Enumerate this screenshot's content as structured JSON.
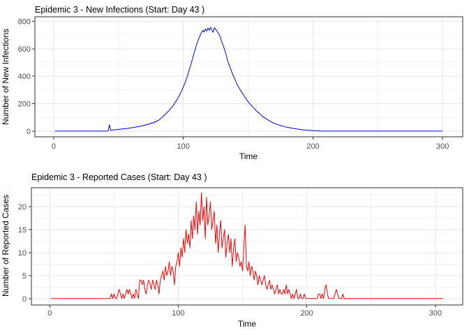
{
  "page": {
    "background": "#ffffff"
  },
  "chart_data": [
    {
      "type": "line",
      "title": "Epidemic 3 - New Infections (Start: Day 43 )",
      "xlabel": "Time",
      "ylabel": "Number of New Infections",
      "line_color": "#0000FF",
      "grid": true,
      "legend": "none",
      "x_ticks": [
        0,
        100,
        200,
        300
      ],
      "x_minor_ticks": [
        50,
        150,
        250
      ],
      "y_ticks": [
        0,
        200,
        400,
        600,
        800
      ],
      "y_minor_ticks": [
        100,
        300,
        500,
        700
      ],
      "xlim": [
        -14.5,
        315.5
      ],
      "ylim": [
        -41,
        833
      ],
      "x_start_day": 1,
      "values": [
        0,
        0,
        0,
        0,
        0,
        0,
        0,
        0,
        0,
        0,
        0,
        0,
        0,
        0,
        0,
        0,
        0,
        0,
        0,
        0,
        0,
        0,
        0,
        0,
        0,
        0,
        0,
        0,
        0,
        0,
        0,
        0,
        0,
        0,
        0,
        0,
        0,
        0,
        0,
        0,
        0,
        3,
        46,
        6,
        8,
        10,
        9,
        12,
        11,
        14,
        13,
        16,
        15,
        18,
        17,
        20,
        19,
        23,
        22,
        26,
        25,
        29,
        28,
        33,
        31,
        36,
        35,
        41,
        39,
        45,
        44,
        50,
        48,
        56,
        54,
        62,
        60,
        69,
        67,
        77,
        80,
        88,
        95,
        103,
        112,
        121,
        131,
        142,
        150,
        163,
        172,
        186,
        198,
        213,
        228,
        245,
        262,
        281,
        300,
        322,
        345,
        370,
        398,
        428,
        460,
        492,
        525,
        558,
        590,
        622,
        650,
        676,
        698,
        718,
        733,
        722,
        744,
        728,
        750,
        734,
        757,
        736,
        720,
        753,
        741,
        727,
        713,
        697,
        668,
        641,
        616,
        589,
        558,
        517,
        492,
        466,
        441,
        417,
        396,
        372,
        352,
        331,
        316,
        299,
        286,
        269,
        255,
        241,
        227,
        214,
        203,
        192,
        182,
        172,
        163,
        150,
        143,
        135,
        127,
        116,
        108,
        101,
        96,
        89,
        83,
        78,
        72,
        67,
        62,
        58,
        54,
        51,
        47,
        44,
        41,
        38,
        36,
        33,
        31,
        29,
        27,
        25,
        23,
        21,
        20,
        18,
        17,
        15,
        14,
        13,
        11,
        10,
        9,
        8,
        9,
        7,
        6,
        5,
        4,
        5,
        3,
        2,
        3,
        2,
        2,
        1,
        1,
        0,
        0,
        0,
        0,
        0,
        0,
        0,
        0,
        0,
        0,
        0,
        0,
        0,
        0,
        0,
        0,
        0,
        0,
        0,
        0,
        0,
        0,
        0,
        0,
        0,
        0,
        0,
        0,
        0,
        0,
        0,
        0,
        0,
        0,
        0,
        0,
        0,
        0,
        0,
        0,
        0,
        0,
        0,
        0,
        0,
        0,
        0,
        0,
        0,
        0,
        0,
        0,
        0,
        0,
        0,
        0,
        0,
        0,
        0,
        0,
        0,
        0,
        0,
        0,
        0,
        0,
        0,
        0,
        0,
        0,
        0,
        0,
        0,
        0,
        0,
        0,
        0,
        0,
        0,
        0,
        0,
        0,
        0,
        0,
        0,
        0,
        0,
        0,
        0,
        0,
        0,
        0,
        0
      ]
    },
    {
      "type": "line",
      "title": "Epidemic 3 - Reported Cases (Start: Day 43 )",
      "xlabel": "Time",
      "ylabel": "Number of Reported Cases",
      "line_color": "#FF0000",
      "grid": true,
      "legend": "none",
      "x_ticks": [
        0,
        100,
        200,
        300
      ],
      "x_minor_ticks": [
        50,
        150,
        250
      ],
      "y_ticks": [
        0,
        5,
        10,
        15,
        20
      ],
      "y_minor_ticks": [
        2.5,
        7.5,
        12.5,
        17.5,
        22.5
      ],
      "xlim": [
        -14.3,
        321.3
      ],
      "ylim": [
        -1.4,
        24.1
      ],
      "x_start_day": 1,
      "values": [
        0,
        0,
        0,
        0,
        0,
        0,
        0,
        0,
        0,
        0,
        0,
        0,
        0,
        0,
        0,
        0,
        0,
        0,
        0,
        0,
        0,
        0,
        0,
        0,
        0,
        0,
        0,
        0,
        0,
        0,
        0,
        0,
        0,
        0,
        0,
        0,
        0,
        0,
        0,
        0,
        0,
        0,
        0,
        0,
        0,
        0,
        0,
        1,
        0,
        1,
        0,
        0,
        1,
        2,
        1,
        0,
        1,
        0,
        1,
        2,
        1,
        2,
        1,
        0,
        1,
        0,
        2,
        1,
        0,
        4,
        4,
        3,
        4,
        2,
        1,
        3,
        4,
        3,
        2,
        4,
        3,
        2,
        4,
        3,
        1,
        4,
        5,
        6,
        4,
        7,
        5,
        6,
        8,
        5,
        7,
        6,
        3,
        7,
        8,
        10,
        7,
        11,
        9,
        13,
        10,
        15,
        12,
        14,
        11,
        17,
        13,
        18,
        15,
        21,
        14,
        19,
        16,
        23,
        17,
        20,
        13,
        22,
        16,
        18,
        21,
        15,
        17,
        19,
        12,
        16,
        10,
        14,
        17,
        11,
        13,
        15,
        9,
        12,
        14,
        10,
        13,
        7,
        11,
        13,
        8,
        10,
        9,
        7,
        8,
        6,
        11,
        16,
        7,
        6,
        8,
        5,
        7,
        6,
        4,
        6,
        5,
        3,
        5,
        4,
        3,
        4,
        5,
        3,
        2,
        3,
        4,
        2,
        3,
        2,
        1,
        2,
        3,
        1,
        2,
        1,
        1,
        2,
        1,
        3,
        1,
        2,
        1,
        0,
        1,
        0,
        1,
        2,
        0,
        0,
        1,
        0,
        0,
        1,
        0,
        0,
        0,
        0,
        0,
        0,
        0,
        0,
        0,
        0,
        1,
        1,
        0,
        1,
        0,
        2,
        3,
        1,
        0,
        0,
        0,
        0,
        0,
        1,
        2,
        1,
        0,
        0,
        0,
        1,
        0,
        0,
        0,
        0,
        0,
        0,
        0,
        0,
        0,
        0,
        0,
        0,
        0,
        0,
        0,
        0,
        0,
        0,
        0,
        0,
        0,
        0,
        0,
        0,
        0,
        0,
        0,
        0,
        0,
        0,
        0,
        0,
        0,
        0,
        0,
        0,
        0,
        0,
        0,
        0,
        0,
        0,
        0,
        0,
        0,
        0,
        0,
        0,
        0,
        0,
        0,
        0,
        0,
        0,
        0,
        0,
        0,
        0,
        0,
        0,
        0,
        0,
        0,
        0,
        0,
        0,
        0,
        0,
        0,
        0,
        0,
        0,
        0,
        0,
        0,
        0,
        0,
        0
      ]
    }
  ],
  "style": {
    "panel_border_color": "#2d2d2d",
    "grid_major_color": "#e6e6e6",
    "grid_minor_color": "#f1f1f1",
    "tick_mark_color": "#333333",
    "tick_label_color": "#4d4d4d"
  }
}
